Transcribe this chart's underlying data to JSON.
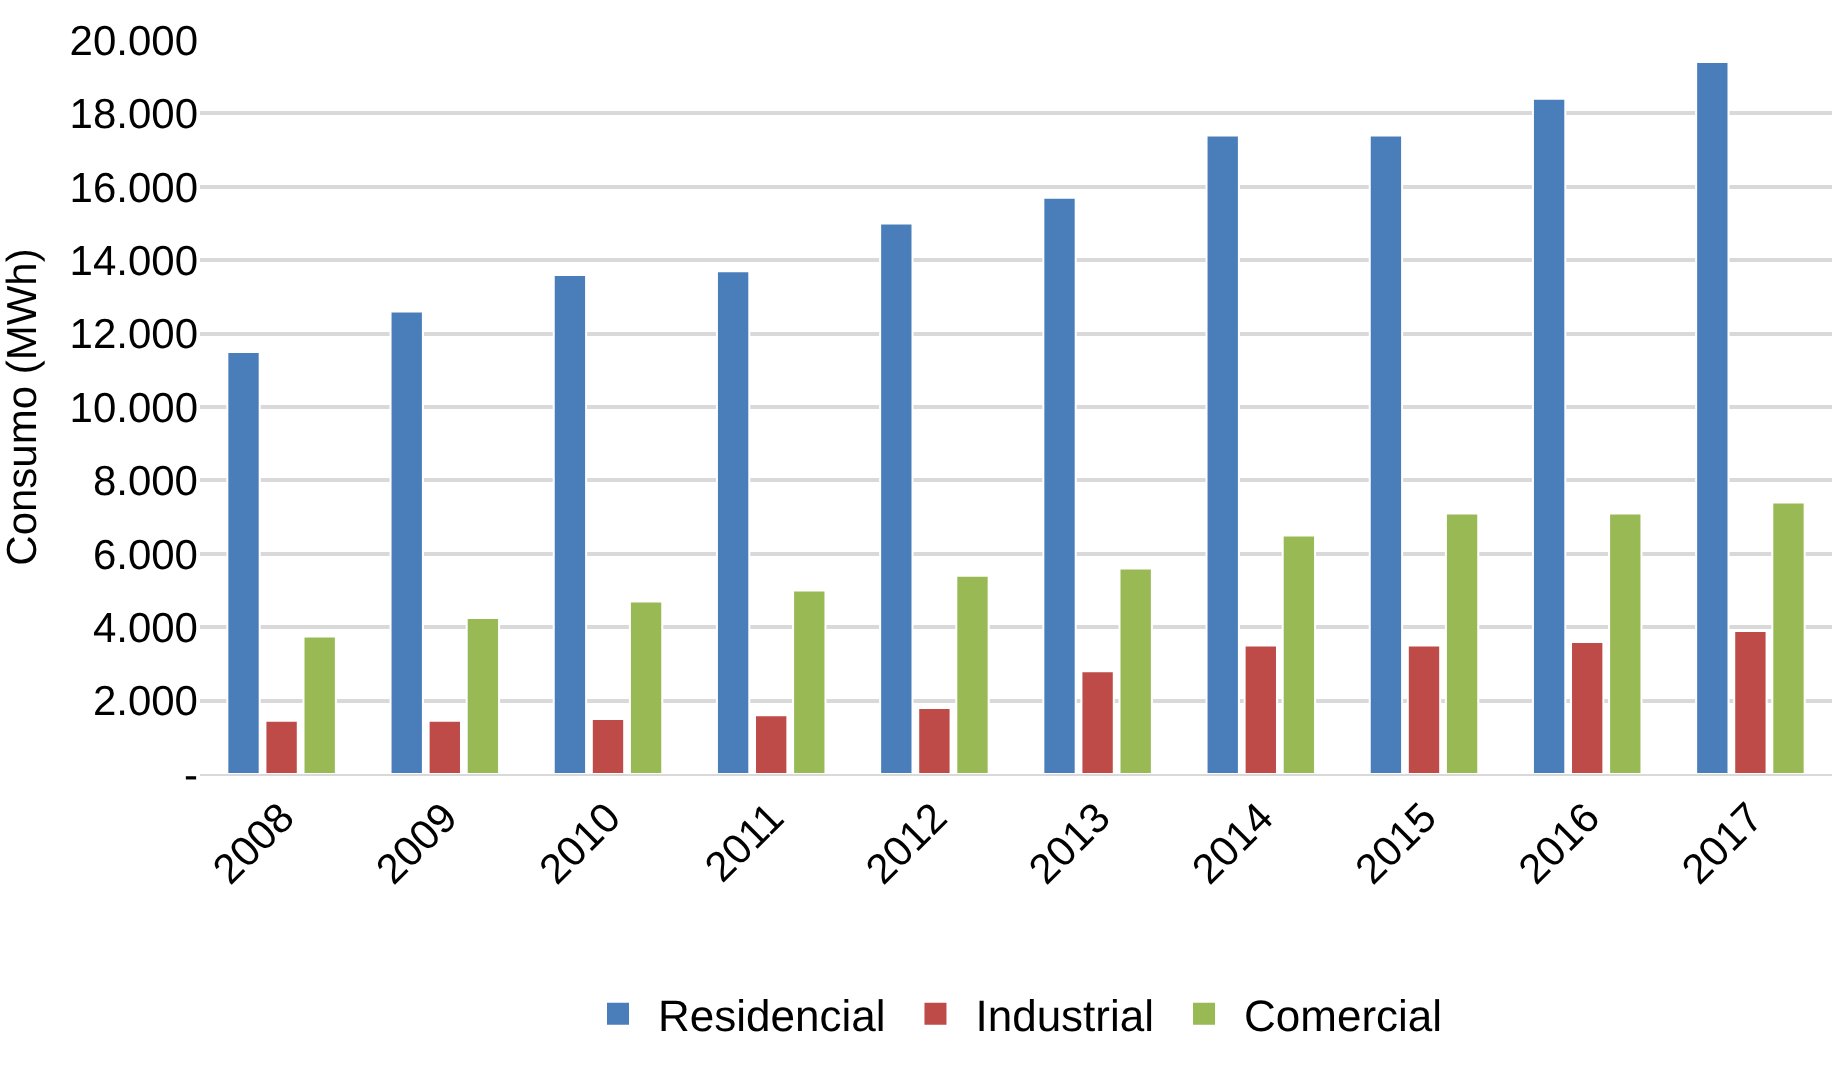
{
  "chart_data": {
    "type": "bar",
    "ylabel": "Consumo (MWh)",
    "categories": [
      "2008",
      "2009",
      "2010",
      "2011",
      "2012",
      "2013",
      "2014",
      "2015",
      "2016",
      "2017"
    ],
    "series": [
      {
        "name": "Residencial",
        "color": "#4a7ebb",
        "values": [
          11500,
          12600,
          13600,
          13700,
          15000,
          15700,
          17400,
          17400,
          18400,
          19400
        ]
      },
      {
        "name": "Industrial",
        "color": "#be4b48",
        "values": [
          1450,
          1450,
          1500,
          1600,
          1800,
          2800,
          3500,
          3500,
          3600,
          3900
        ]
      },
      {
        "name": "Comercial",
        "color": "#98b954",
        "values": [
          3750,
          4250,
          4700,
          5000,
          5400,
          5600,
          6500,
          7100,
          7100,
          7400
        ]
      }
    ],
    "ylim": [
      0,
      20000
    ],
    "yticks": [
      {
        "value": 0,
        "label": "-"
      },
      {
        "value": 2000,
        "label": "2.000"
      },
      {
        "value": 4000,
        "label": "4.000"
      },
      {
        "value": 6000,
        "label": "6.000"
      },
      {
        "value": 8000,
        "label": "8.000"
      },
      {
        "value": 10000,
        "label": "10.000"
      },
      {
        "value": 12000,
        "label": "12.000"
      },
      {
        "value": 14000,
        "label": "14.000"
      },
      {
        "value": 16000,
        "label": "16.000"
      },
      {
        "value": 18000,
        "label": "18.000"
      },
      {
        "value": 20000,
        "label": "20.000"
      }
    ],
    "grid": "y",
    "legend": "bottom"
  }
}
